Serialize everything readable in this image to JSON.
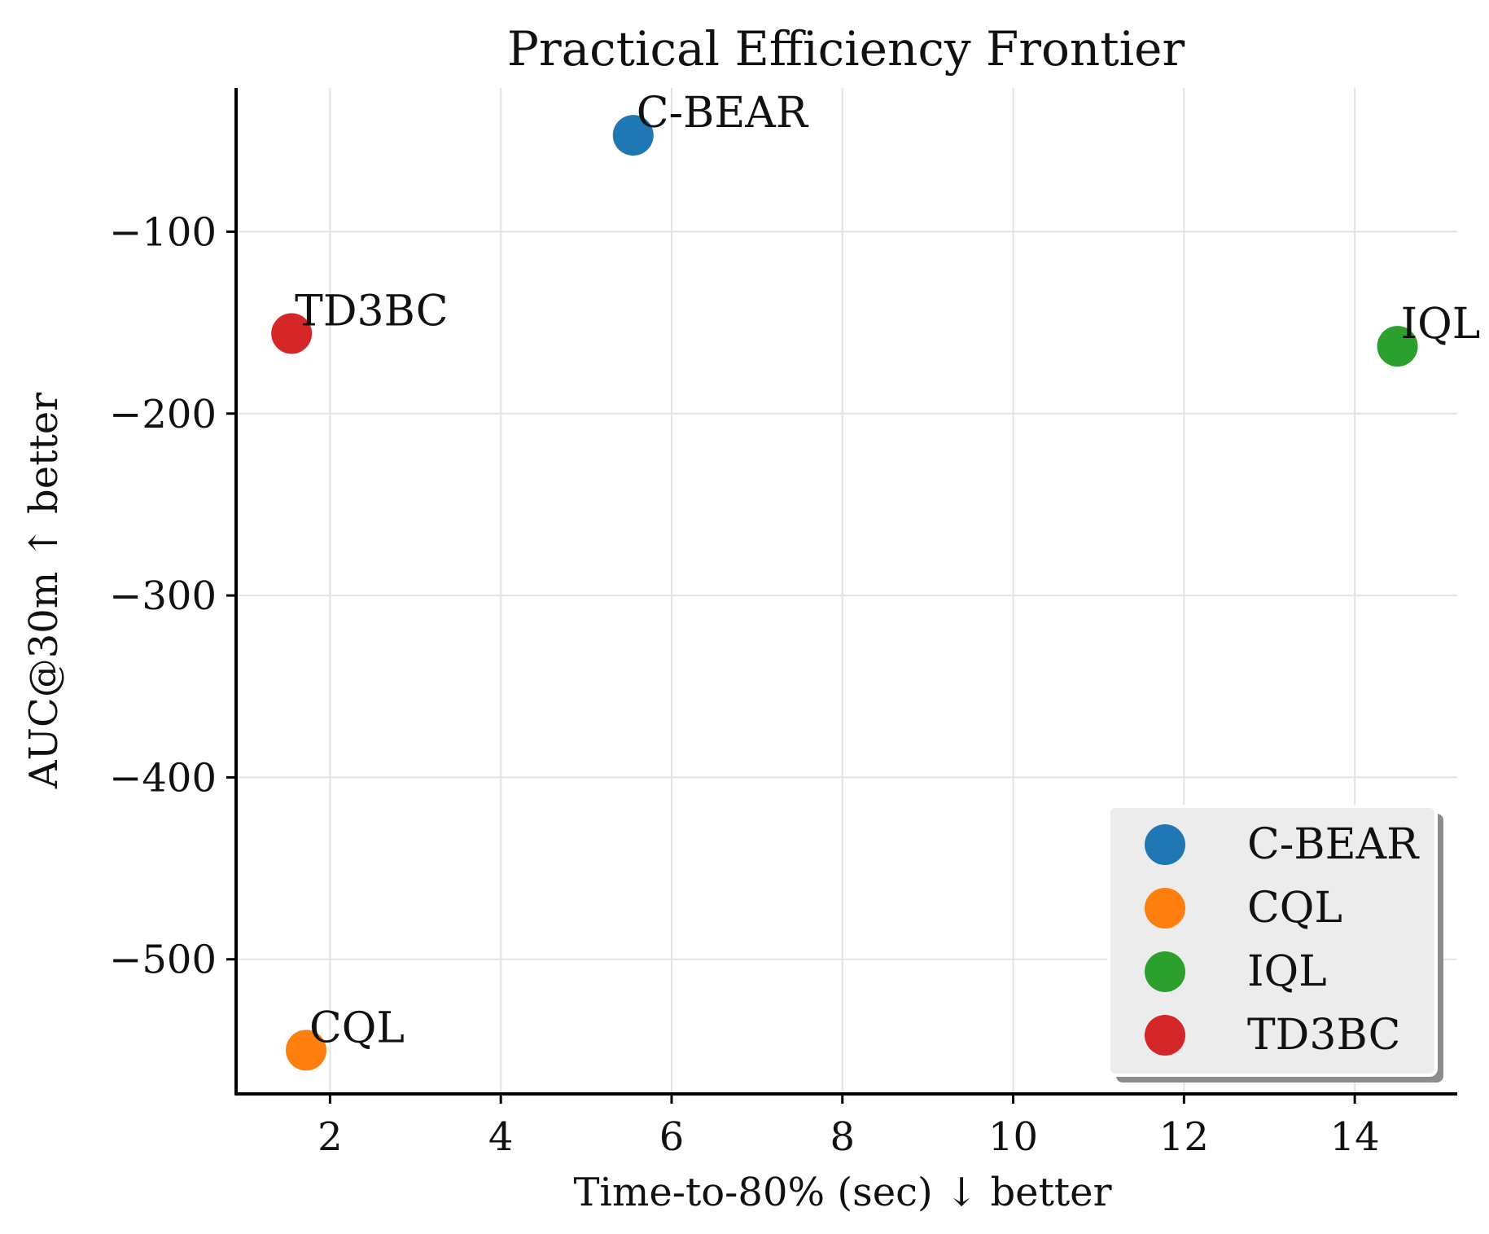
{
  "chart_data": {
    "type": "scatter",
    "title": "Practical Efficiency Frontier",
    "xlabel": "Time-to-80% (sec) ↓ better",
    "ylabel": "AUC@30m ↑ better",
    "xlim": [
      0.9,
      15.2
    ],
    "ylim": [
      -574,
      -21
    ],
    "xticks": [
      2,
      4,
      6,
      8,
      10,
      12,
      14
    ],
    "xtick_labels": [
      "2",
      "4",
      "6",
      "8",
      "10",
      "12",
      "14"
    ],
    "yticks": [
      -100,
      -200,
      -300,
      -400,
      -500
    ],
    "ytick_labels": [
      "−100",
      "−200",
      "−300",
      "−400",
      "−500"
    ],
    "grid": true,
    "legend_position": "bottom-right",
    "series": [
      {
        "name": "C-BEAR",
        "color": "#1f77b4",
        "points": [
          {
            "x": 5.55,
            "y": -47,
            "label": "C-BEAR"
          }
        ]
      },
      {
        "name": "CQL",
        "color": "#ff7f0e",
        "points": [
          {
            "x": 1.72,
            "y": -550,
            "label": "CQL"
          }
        ]
      },
      {
        "name": "IQL",
        "color": "#2ca02c",
        "points": [
          {
            "x": 14.5,
            "y": -163,
            "label": "IQL"
          }
        ]
      },
      {
        "name": "TD3BC",
        "color": "#d62728",
        "points": [
          {
            "x": 1.55,
            "y": -156,
            "label": "TD3BC"
          }
        ]
      }
    ]
  }
}
